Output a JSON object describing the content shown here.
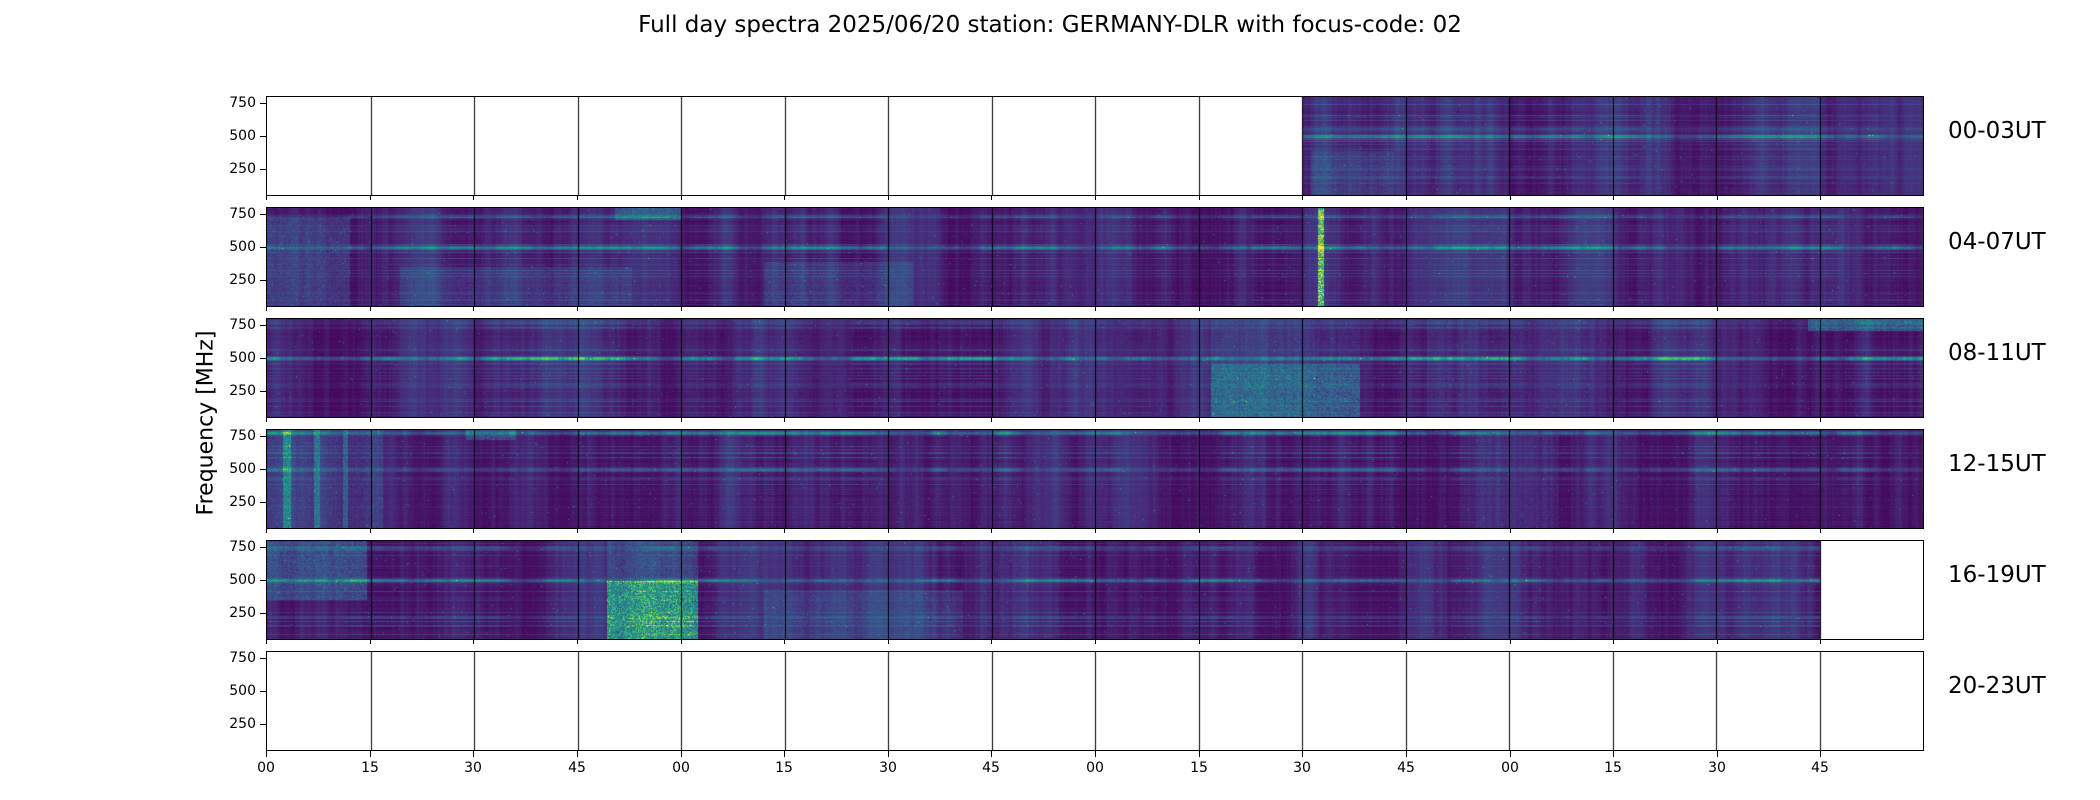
{
  "figure": {
    "background": "#ffffff",
    "frame_color": "#000000"
  },
  "chart_data": {
    "type": "heatmap",
    "title": "Full day spectra 2025/06/20 station: GERMANY-DLR with focus-code: 02",
    "ylabel": "Frequency [MHz]",
    "xlabel": "",
    "colormap": "viridis",
    "colormap_stops": [
      "#440154",
      "#482878",
      "#3e4a89",
      "#31688e",
      "#26828e",
      "#1f9e89",
      "#35b779",
      "#6dcd59",
      "#fde725"
    ],
    "y_range_mhz": [
      50,
      800
    ],
    "y_tick_labels": [
      "750",
      "500",
      "250"
    ],
    "y_tick_values": [
      750,
      500,
      250
    ],
    "x_tick_labels": [
      "00",
      "15",
      "30",
      "45",
      "00",
      "15",
      "30",
      "45",
      "00",
      "15",
      "30",
      "45",
      "00",
      "15",
      "30",
      "45"
    ],
    "segments_per_row": 16,
    "minutes_per_segment": 15,
    "grid": false,
    "legend": "none",
    "rows": [
      {
        "label": "00-03UT",
        "coverage": [
          0.625,
          1.0
        ],
        "hlines": [
          {
            "mhz": 500,
            "intensity": 0.32
          },
          {
            "mhz": 560,
            "intensity": 0.14
          },
          {
            "mhz": 250,
            "intensity": 0.08
          }
        ],
        "vlines": [],
        "patches": [
          {
            "x": 0.63,
            "w": 0.05,
            "y": 0.55,
            "h": 0.45,
            "intensity": 0.14
          }
        ]
      },
      {
        "label": "04-07UT",
        "coverage": [
          0.0,
          1.0
        ],
        "hlines": [
          {
            "mhz": 500,
            "intensity": 0.38
          },
          {
            "mhz": 740,
            "intensity": 0.12
          }
        ],
        "vlines": [
          {
            "x": 0.636,
            "intensity": 0.85,
            "width": 0.003
          }
        ],
        "patches": [
          {
            "x": 0.0,
            "w": 0.05,
            "y": 0.1,
            "h": 0.9,
            "intensity": 0.2
          },
          {
            "x": 0.08,
            "w": 0.14,
            "y": 0.6,
            "h": 0.4,
            "intensity": 0.13
          },
          {
            "x": 0.3,
            "w": 0.09,
            "y": 0.55,
            "h": 0.45,
            "intensity": 0.13
          },
          {
            "x": 0.21,
            "w": 0.04,
            "y": 0.0,
            "h": 0.12,
            "intensity": 0.3
          }
        ]
      },
      {
        "label": "08-11UT",
        "coverage": [
          0.0,
          1.0
        ],
        "hlines": [
          {
            "mhz": 500,
            "intensity": 0.5
          },
          {
            "mhz": 770,
            "intensity": 0.14
          },
          {
            "mhz": 300,
            "intensity": 0.08
          }
        ],
        "vlines": [],
        "patches": [
          {
            "x": 0.57,
            "w": 0.09,
            "y": 0.45,
            "h": 0.55,
            "intensity": 0.42
          },
          {
            "x": 0.57,
            "w": 0.09,
            "y": 0.0,
            "h": 0.45,
            "intensity": 0.12
          },
          {
            "x": 0.93,
            "w": 0.07,
            "y": 0.0,
            "h": 0.12,
            "intensity": 0.35
          },
          {
            "x": 0.7,
            "w": 0.12,
            "y": 0.0,
            "h": 1.0,
            "intensity": 0.07
          }
        ]
      },
      {
        "label": "12-15UT",
        "coverage": [
          0.0,
          1.0
        ],
        "hlines": [
          {
            "mhz": 780,
            "intensity": 0.45
          },
          {
            "mhz": 500,
            "intensity": 0.3
          },
          {
            "mhz": 430,
            "intensity": 0.1
          }
        ],
        "vlines": [
          {
            "x": 0.012,
            "intensity": 0.45,
            "width": 0.004
          },
          {
            "x": 0.03,
            "intensity": 0.35,
            "width": 0.003
          },
          {
            "x": 0.047,
            "intensity": 0.3,
            "width": 0.002
          }
        ],
        "patches": [
          {
            "x": 0.0,
            "w": 0.07,
            "y": 0.0,
            "h": 1.0,
            "intensity": 0.16
          },
          {
            "x": 0.73,
            "w": 0.05,
            "y": 0.0,
            "h": 1.0,
            "intensity": 0.09
          },
          {
            "x": 0.12,
            "w": 0.03,
            "y": 0.0,
            "h": 0.1,
            "intensity": 0.3
          }
        ]
      },
      {
        "label": "16-19UT",
        "coverage": [
          0.0,
          0.9375
        ],
        "hlines": [
          {
            "mhz": 500,
            "intensity": 0.35
          },
          {
            "mhz": 750,
            "intensity": 0.18
          }
        ],
        "vlines": [],
        "patches": [
          {
            "x": 0.205,
            "w": 0.055,
            "y": 0.4,
            "h": 0.6,
            "intensity": 0.75
          },
          {
            "x": 0.205,
            "w": 0.055,
            "y": 0.0,
            "h": 0.4,
            "intensity": 0.22
          },
          {
            "x": 0.0,
            "w": 0.06,
            "y": 0.0,
            "h": 0.6,
            "intensity": 0.28
          },
          {
            "x": 0.3,
            "w": 0.12,
            "y": 0.5,
            "h": 0.5,
            "intensity": 0.13
          },
          {
            "x": 0.43,
            "w": 0.03,
            "y": 0.0,
            "h": 1.0,
            "intensity": 0.1
          }
        ]
      },
      {
        "label": "20-23UT",
        "coverage": [
          0.0,
          0.0
        ],
        "hlines": [],
        "vlines": [],
        "patches": []
      }
    ]
  }
}
